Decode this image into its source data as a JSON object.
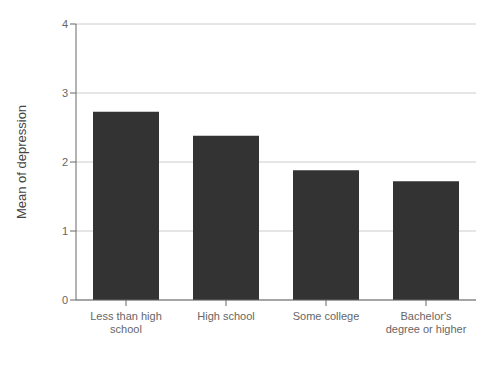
{
  "chart_data": {
    "type": "bar",
    "categories": [
      "Less than high school",
      "High school",
      "Some college",
      "Bachelor's degree or higher"
    ],
    "values": [
      2.73,
      2.38,
      1.88,
      1.72
    ],
    "color": "#333333",
    "ylabel": "Mean of depression",
    "ylim": [
      0,
      4
    ],
    "yticks": [
      0,
      1,
      2,
      3,
      4
    ],
    "grid": true
  }
}
